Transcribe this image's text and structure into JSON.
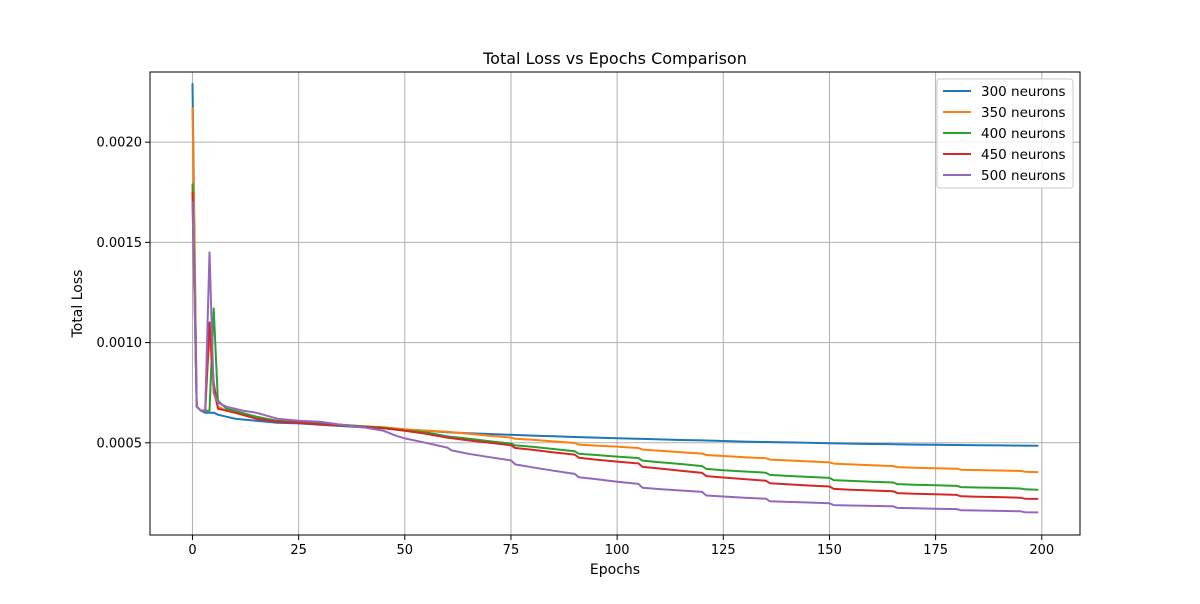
{
  "chart_data": {
    "type": "line",
    "title": "Total Loss vs Epochs Comparison",
    "xlabel": "Epochs",
    "ylabel": "Total Loss",
    "xlim": [
      -10,
      209
    ],
    "ylim": [
      4e-05,
      0.00235
    ],
    "xticks": [
      0,
      25,
      50,
      75,
      100,
      125,
      150,
      175,
      200
    ],
    "xtick_labels": [
      "0",
      "25",
      "50",
      "75",
      "100",
      "125",
      "150",
      "175",
      "200"
    ],
    "yticks": [
      0.0005,
      0.001,
      0.0015,
      0.002
    ],
    "ytick_labels": [
      "0.0005",
      "0.0010",
      "0.0015",
      "0.0020"
    ],
    "grid": true,
    "legend_position": "top-right",
    "series": [
      {
        "name": "300 neurons",
        "color": "#1f77b4",
        "x": [
          0,
          1,
          2,
          3,
          4,
          5,
          6,
          8,
          10,
          15,
          20,
          25,
          30,
          35,
          40,
          45,
          50,
          55,
          60,
          65,
          70,
          75,
          80,
          85,
          90,
          95,
          100,
          105,
          110,
          115,
          120,
          125,
          130,
          135,
          140,
          145,
          150,
          155,
          160,
          165,
          170,
          175,
          180,
          185,
          190,
          195,
          199
        ],
        "y": [
          0.00229,
          0.00068,
          0.00066,
          0.00065,
          0.00065,
          0.00065,
          0.00064,
          0.00063,
          0.00062,
          0.00061,
          0.0006,
          0.000597,
          0.00059,
          0.000584,
          0.000578,
          0.000572,
          0.000565,
          0.00056,
          0.000553,
          0.000548,
          0.000544,
          0.00054,
          0.000536,
          0.000533,
          0.000529,
          0.000526,
          0.000523,
          0.00052,
          0.000517,
          0.000514,
          0.000512,
          0.000509,
          0.000506,
          0.000504,
          0.000502,
          0.0005,
          0.000498,
          0.000496,
          0.000494,
          0.000493,
          0.000491,
          0.00049,
          0.000489,
          0.000488,
          0.000487,
          0.000486,
          0.000485
        ]
      },
      {
        "name": "350 neurons",
        "color": "#ff7f0e",
        "x": [
          0,
          1,
          2,
          3,
          4,
          5,
          6,
          8,
          10,
          15,
          20,
          25,
          30,
          35,
          40,
          45,
          50,
          55,
          60,
          65,
          70,
          75,
          76,
          80,
          85,
          90,
          91,
          95,
          100,
          105,
          106,
          110,
          115,
          120,
          121,
          125,
          130,
          135,
          136,
          140,
          145,
          150,
          151,
          155,
          160,
          165,
          166,
          170,
          175,
          180,
          181,
          185,
          190,
          195,
          196,
          199
        ],
        "y": [
          0.00217,
          0.00068,
          0.00066,
          0.00066,
          0.00105,
          0.00075,
          0.00068,
          0.00066,
          0.00065,
          0.00063,
          0.00061,
          0.000605,
          0.000597,
          0.00059,
          0.000583,
          0.000578,
          0.000568,
          0.000561,
          0.000555,
          0.000545,
          0.000535,
          0.000526,
          0.00052,
          0.000515,
          0.000507,
          0.000499,
          0.000491,
          0.000486,
          0.000481,
          0.000474,
          0.000466,
          0.00046,
          0.000453,
          0.000446,
          0.000439,
          0.000434,
          0.000428,
          0.000423,
          0.000416,
          0.000412,
          0.000407,
          0.000402,
          0.000396,
          0.000392,
          0.000388,
          0.000384,
          0.000379,
          0.000376,
          0.000373,
          0.000371,
          0.000366,
          0.000364,
          0.000362,
          0.00036,
          0.000356,
          0.000354
        ]
      },
      {
        "name": "400 neurons",
        "color": "#2ca02c",
        "x": [
          0,
          1,
          2,
          3,
          4,
          5,
          6,
          8,
          10,
          15,
          20,
          25,
          30,
          35,
          40,
          45,
          50,
          55,
          60,
          65,
          70,
          75,
          76,
          80,
          85,
          90,
          91,
          95,
          100,
          105,
          106,
          110,
          115,
          120,
          121,
          125,
          130,
          135,
          136,
          140,
          145,
          150,
          151,
          155,
          160,
          165,
          166,
          170,
          175,
          180,
          181,
          185,
          190,
          195,
          196,
          199
        ],
        "y": [
          0.00179,
          0.00068,
          0.00066,
          0.00066,
          0.00066,
          0.00117,
          0.00071,
          0.00067,
          0.00066,
          0.00063,
          0.00061,
          0.000605,
          0.000597,
          0.00059,
          0.000583,
          0.000575,
          0.000562,
          0.000552,
          0.000532,
          0.000521,
          0.000508,
          0.000496,
          0.000487,
          0.00048,
          0.000469,
          0.000458,
          0.000445,
          0.000439,
          0.000431,
          0.000424,
          0.000411,
          0.000403,
          0.000394,
          0.000384,
          0.00037,
          0.000363,
          0.000357,
          0.000351,
          0.00034,
          0.000335,
          0.00033,
          0.000325,
          0.000314,
          0.00031,
          0.000306,
          0.000302,
          0.000294,
          0.000291,
          0.000288,
          0.000285,
          0.000279,
          0.000277,
          0.000275,
          0.000272,
          0.000268,
          0.000266
        ]
      },
      {
        "name": "450 neurons",
        "color": "#d62728",
        "x": [
          0,
          1,
          2,
          3,
          4,
          5,
          6,
          8,
          10,
          15,
          20,
          25,
          30,
          35,
          40,
          45,
          50,
          55,
          60,
          65,
          70,
          75,
          76,
          80,
          85,
          90,
          91,
          95,
          100,
          105,
          106,
          110,
          115,
          120,
          121,
          125,
          130,
          135,
          136,
          140,
          145,
          150,
          151,
          155,
          160,
          165,
          166,
          170,
          175,
          180,
          181,
          185,
          190,
          195,
          196,
          199
        ],
        "y": [
          0.00175,
          0.00068,
          0.00066,
          0.00066,
          0.0011,
          0.0008,
          0.00067,
          0.00066,
          0.00065,
          0.00062,
          0.000605,
          0.0006,
          0.000593,
          0.000587,
          0.00058,
          0.000573,
          0.00056,
          0.000545,
          0.000526,
          0.000512,
          0.0005,
          0.000488,
          0.000474,
          0.000465,
          0.000452,
          0.000441,
          0.000425,
          0.000416,
          0.000406,
          0.000397,
          0.00038,
          0.000372,
          0.000361,
          0.00035,
          0.000334,
          0.000327,
          0.000319,
          0.000311,
          0.000298,
          0.000293,
          0.000287,
          0.000282,
          0.00027,
          0.000266,
          0.000262,
          0.000258,
          0.000249,
          0.000246,
          0.000243,
          0.00024,
          0.000233,
          0.000231,
          0.000229,
          0.000226,
          0.000221,
          0.00022
        ]
      },
      {
        "name": "500 neurons",
        "color": "#9467bd",
        "x": [
          0,
          1,
          2,
          3,
          4,
          5,
          6,
          8,
          10,
          12,
          15,
          20,
          25,
          30,
          35,
          40,
          45,
          48,
          50,
          55,
          60,
          61,
          65,
          70,
          75,
          76,
          80,
          85,
          90,
          91,
          95,
          100,
          105,
          106,
          110,
          115,
          120,
          121,
          125,
          130,
          135,
          136,
          140,
          145,
          150,
          151,
          155,
          160,
          165,
          166,
          170,
          175,
          180,
          181,
          185,
          190,
          195,
          196,
          199
        ],
        "y": [
          0.0017,
          0.00068,
          0.00066,
          0.00066,
          0.00145,
          0.00075,
          0.0007,
          0.00068,
          0.00067,
          0.00066,
          0.00065,
          0.00062,
          0.00061,
          0.000605,
          0.00059,
          0.000578,
          0.00056,
          0.000535,
          0.000522,
          0.0005,
          0.000476,
          0.000462,
          0.000445,
          0.000428,
          0.000412,
          0.000392,
          0.000378,
          0.000361,
          0.000345,
          0.000328,
          0.000319,
          0.000306,
          0.000295,
          0.000276,
          0.000269,
          0.000262,
          0.000255,
          0.000237,
          0.000232,
          0.000226,
          0.000221,
          0.000208,
          0.000205,
          0.000202,
          0.000198,
          0.000189,
          0.000187,
          0.000185,
          0.000183,
          0.000175,
          0.000173,
          0.000171,
          0.000169,
          0.000163,
          0.000162,
          0.00016,
          0.000158,
          0.000154,
          0.000153
        ]
      }
    ]
  }
}
